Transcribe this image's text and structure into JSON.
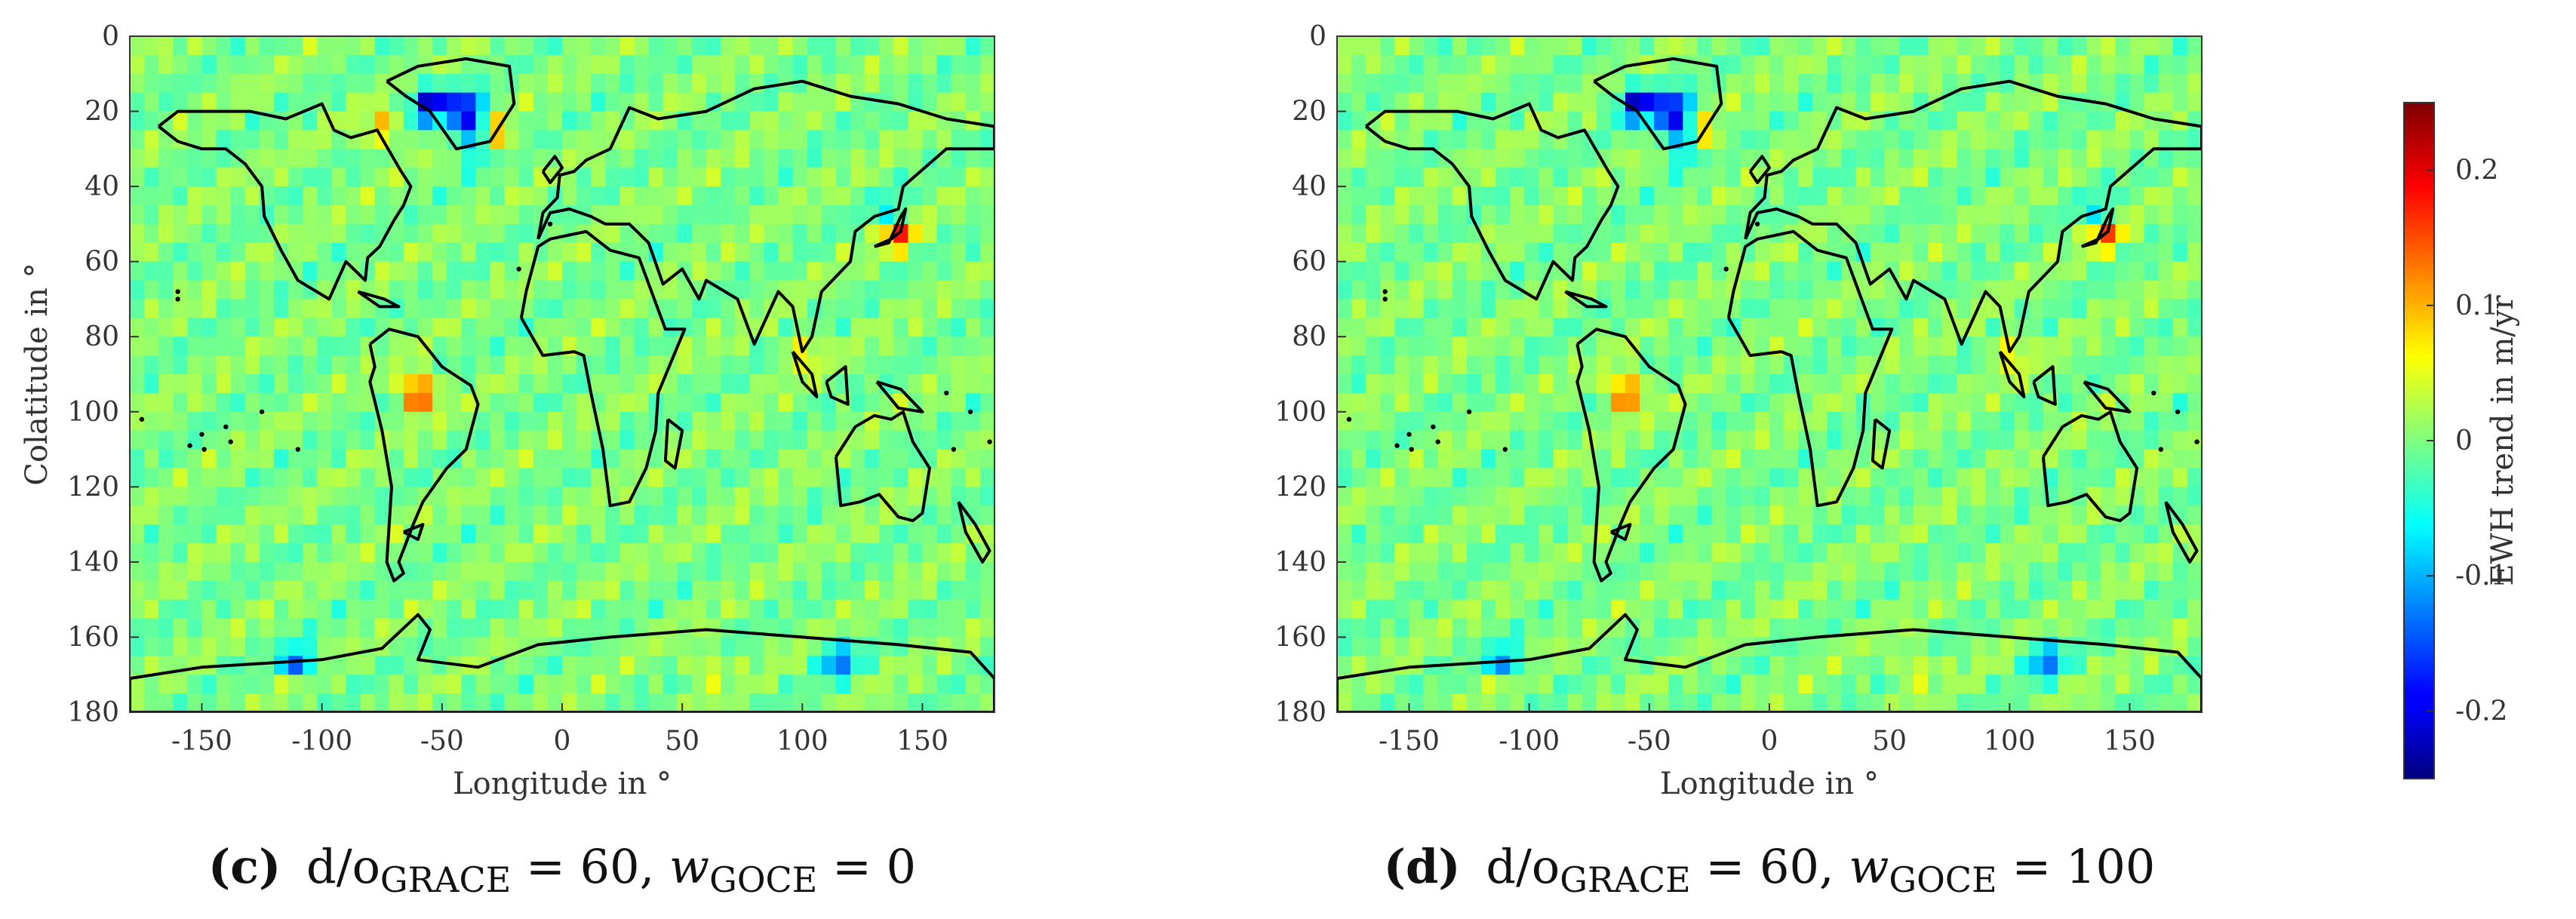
{
  "chart_data": [
    {
      "type": "heatmap",
      "panel_label": "c",
      "caption": {
        "label": "(c)",
        "parts": [
          "d/o",
          "GRACE",
          " = 60, ",
          "w",
          "GOCE",
          " = 0"
        ]
      },
      "xlabel": "Longitude in °",
      "ylabel": "Colatitude in °",
      "xlim": [
        -180,
        180
      ],
      "ylim": [
        0,
        180
      ],
      "xticks": [
        -150,
        -100,
        -50,
        0,
        50,
        100,
        150
      ],
      "yticks": [
        0,
        20,
        40,
        60,
        80,
        100,
        120,
        140,
        160,
        180
      ],
      "y_reversed": true,
      "overlay": "coastlines",
      "anomalies": [
        {
          "lon": -40,
          "colat": 20,
          "value": -0.24
        },
        {
          "lon": -55,
          "colat": 18,
          "value": -0.22
        },
        {
          "lon": -35,
          "colat": 28,
          "value": -0.2
        },
        {
          "lon": -30,
          "colat": 27,
          "value": 0.18
        },
        {
          "lon": -75,
          "colat": 25,
          "value": 0.1
        },
        {
          "lon": 140,
          "colat": 52,
          "value": 0.2
        },
        {
          "lon": 138,
          "colat": 48,
          "value": -0.12
        },
        {
          "lon": -60,
          "colat": 95,
          "value": 0.2
        },
        {
          "lon": 100,
          "colat": 84,
          "value": 0.08
        },
        {
          "lon": -110,
          "colat": 168,
          "value": -0.24
        },
        {
          "lon": -110,
          "colat": 170,
          "value": 0.12
        },
        {
          "lon": 115,
          "colat": 166,
          "value": -0.14
        },
        {
          "lon": 60,
          "colat": 168,
          "value": 0.06
        }
      ]
    },
    {
      "type": "heatmap",
      "panel_label": "d",
      "caption": {
        "label": "(d)",
        "parts": [
          "d/o",
          "GRACE",
          " = 60, ",
          "w",
          "GOCE",
          " = 100"
        ]
      },
      "xlabel": "Longitude in °",
      "ylabel": "",
      "xlim": [
        -180,
        180
      ],
      "ylim": [
        0,
        180
      ],
      "xticks": [
        -150,
        -100,
        -50,
        0,
        50,
        100,
        150
      ],
      "yticks": [
        0,
        20,
        40,
        60,
        80,
        100,
        120,
        140,
        160,
        180
      ],
      "y_reversed": true,
      "overlay": "coastlines",
      "anomalies": [
        {
          "lon": -40,
          "colat": 20,
          "value": -0.24
        },
        {
          "lon": -55,
          "colat": 18,
          "value": -0.22
        },
        {
          "lon": -35,
          "colat": 28,
          "value": -0.2
        },
        {
          "lon": -30,
          "colat": 27,
          "value": 0.16
        },
        {
          "lon": 140,
          "colat": 52,
          "value": 0.18
        },
        {
          "lon": 138,
          "colat": 48,
          "value": -0.12
        },
        {
          "lon": -60,
          "colat": 95,
          "value": 0.18
        },
        {
          "lon": 100,
          "colat": 84,
          "value": 0.08
        },
        {
          "lon": -110,
          "colat": 168,
          "value": -0.22
        },
        {
          "lon": -110,
          "colat": 170,
          "value": 0.12
        },
        {
          "lon": 115,
          "colat": 166,
          "value": -0.14
        },
        {
          "lon": 60,
          "colat": 168,
          "value": 0.06
        }
      ]
    }
  ],
  "colorbar": {
    "label": "EWH trend in m/yr",
    "range": [
      -0.25,
      0.25
    ],
    "ticks": [
      -0.2,
      -0.1,
      0,
      0.1,
      0.2
    ],
    "tick_labels": [
      "-0.2",
      "-0.1",
      "0",
      "0.1",
      "0.2"
    ],
    "colormap": "jet"
  },
  "colors": {
    "background_field": "#7fff7f",
    "coastline": "#000000"
  }
}
